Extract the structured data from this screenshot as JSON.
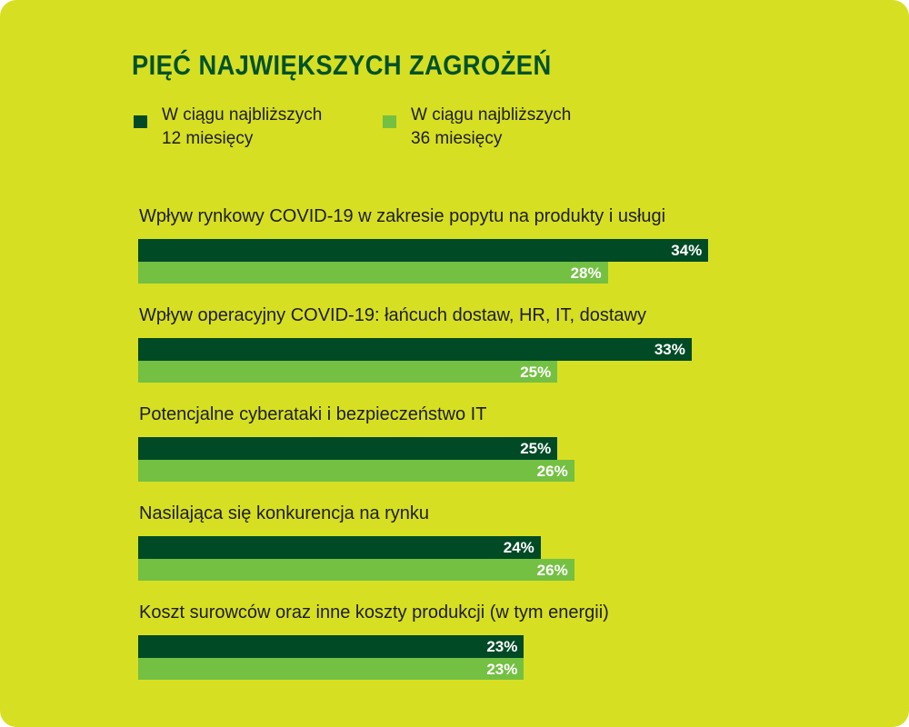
{
  "chart_data": {
    "type": "bar",
    "orientation": "horizontal",
    "title": "PIĘĆ NAJWIĘKSZYCH ZAGROŻEŃ",
    "categories": [
      "Wpływ rynkowy COVID-19 w zakresie popytu na produkty i usługi",
      "Wpływ operacyjny COVID-19: łańcuch dostaw, HR, IT, dostawy",
      "Potencjalne cyberataki i bezpieczeństwo IT",
      "Nasilająca się konkurencja na rynku",
      "Koszt surowców oraz inne koszty produkcji (w tym energii)"
    ],
    "series": [
      {
        "name": "W ciągu najbliższych 12 miesięcy",
        "line1": "W ciągu najbliższych",
        "line2": "12 miesięcy",
        "color": "#004a26",
        "values": [
          34,
          33,
          25,
          24,
          23
        ]
      },
      {
        "name": "W ciągu najbliższych 36 miesięcy",
        "line1": "W ciągu najbliższych",
        "line2": "36 miesięcy",
        "color": "#74c043",
        "values": [
          28,
          25,
          26,
          26,
          23
        ]
      }
    ],
    "value_suffix": "%",
    "legend_position": "top-left",
    "grid": false
  }
}
